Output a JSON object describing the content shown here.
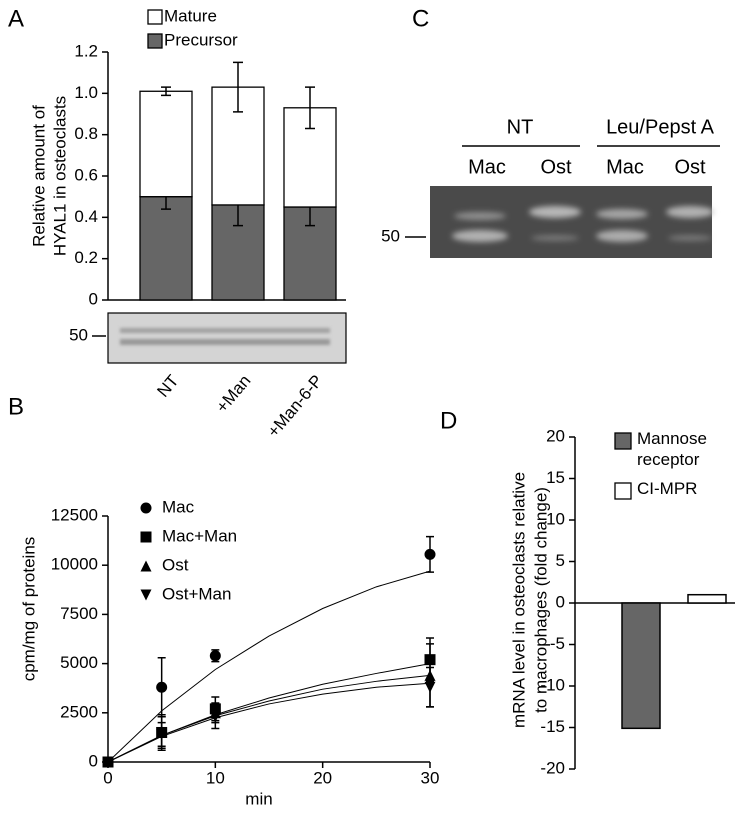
{
  "chart_data": [
    {
      "type": "stacked_bar",
      "panel": "A",
      "y_label": [
        "Relative amount of",
        "HYAL1 in osteoclasts"
      ],
      "categories": [
        "NT",
        "+Man",
        "+Man-6-P"
      ],
      "series": [
        {
          "name": "Mature",
          "color": "#ffffff",
          "values": [
            0.51,
            0.57,
            0.48
          ],
          "errors": [
            0.02,
            0.12,
            0.1
          ]
        },
        {
          "name": "Precursor",
          "color": "#666666",
          "values": [
            0.5,
            0.46,
            0.45
          ],
          "errors": [
            0.06,
            0.1,
            0.09
          ]
        }
      ],
      "ylim": [
        0,
        1.2
      ],
      "yticks": [
        0,
        0.2,
        0.4,
        0.6,
        0.8,
        {
          "value": 1,
          "label": "1.0"
        },
        1.2
      ],
      "blot_marker": "50"
    },
    {
      "type": "scatter",
      "panel": "B",
      "x_label": "min",
      "y_label": "cpm/mg of proteins",
      "x": [
        0,
        5,
        10,
        30
      ],
      "fit_x": [
        0,
        5,
        10,
        15,
        20,
        25,
        30
      ],
      "series": [
        {
          "name": "Mac",
          "color": "#000000",
          "marker": "circle",
          "values": [
            0,
            3800,
            5400,
            10550
          ],
          "errors": [
            0,
            1500,
            300,
            900
          ],
          "fit": [
            0,
            2600,
            4700,
            6400,
            7800,
            8900,
            9700
          ]
        },
        {
          "name": "Mac+Man",
          "color": "#000000",
          "marker": "square",
          "values": [
            0,
            1500,
            2700,
            5200
          ],
          "errors": [
            0,
            800,
            600,
            1100
          ],
          "fit": [
            0,
            1350,
            2400,
            3250,
            3950,
            4500,
            5000
          ]
        },
        {
          "name": "Ost",
          "color": "#000000",
          "marker": "triangle-up",
          "values": [
            0,
            1500,
            2500,
            4400
          ],
          "errors": [
            0,
            900,
            500,
            1600
          ],
          "fit": [
            0,
            1350,
            2350,
            3100,
            3700,
            4100,
            4400
          ]
        },
        {
          "name": "Ost+Man",
          "color": "#000000",
          "marker": "triangle-down",
          "values": [
            0,
            1400,
            2300,
            3800
          ],
          "errors": [
            0,
            600,
            600,
            1000
          ],
          "fit": [
            0,
            1300,
            2250,
            2950,
            3450,
            3800,
            4000
          ]
        }
      ],
      "xlim": [
        0,
        30
      ],
      "xticks": [
        0,
        10,
        20,
        30
      ],
      "ylim": [
        0,
        12500
      ],
      "yticks": [
        0,
        2500,
        5000,
        7500,
        10000,
        12500
      ]
    },
    {
      "type": "gel",
      "panel": "C",
      "groups": [
        "NT",
        "Leu/Pepst A"
      ],
      "lanes": [
        "Mac",
        "Ost",
        "Mac",
        "Ost"
      ],
      "marker": "50"
    },
    {
      "type": "bar",
      "panel": "D",
      "y_label": [
        "mRNA level in osteoclasts relative",
        "to macrophages (fold change)"
      ],
      "series": [
        {
          "name": "Mannose receptor",
          "color": "#666666",
          "values": [
            -15.1
          ]
        },
        {
          "name": "CI-MPR",
          "color": "#ffffff",
          "values": [
            1
          ]
        }
      ],
      "ylim": [
        -20,
        20
      ],
      "yticks": [
        -20,
        -15,
        -10,
        -5,
        0,
        5,
        10,
        15,
        20
      ]
    }
  ]
}
